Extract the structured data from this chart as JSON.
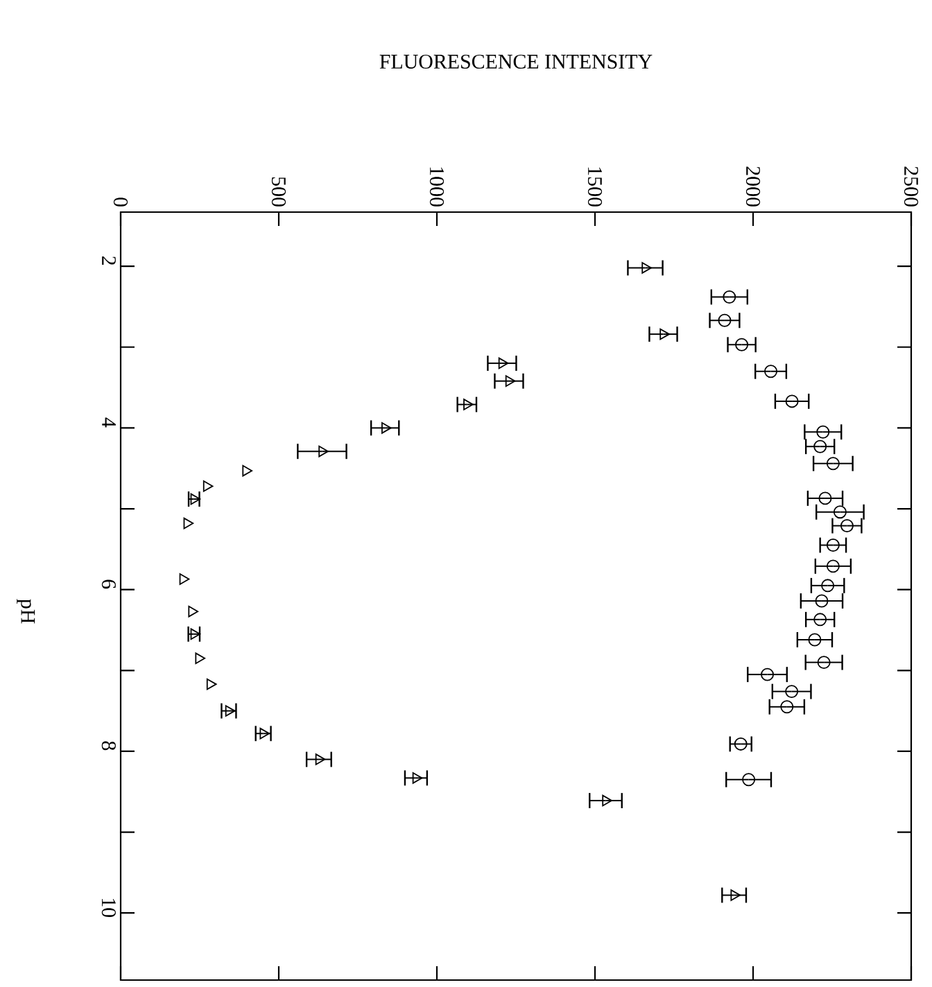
{
  "chart_data": {
    "type": "scatter",
    "xlabel": "FLUORESCENCE INTENSITY",
    "ylabel": "pH",
    "xlim": [
      0,
      2500
    ],
    "xticks": [
      0,
      500,
      1000,
      1500,
      2000,
      2500
    ],
    "ylim": [
      10.83,
      1.33
    ],
    "yticks": [
      2,
      {
        "value": 3,
        "label": null
      },
      4,
      {
        "value": 5,
        "label": null
      },
      6,
      {
        "value": 7,
        "label": null
      },
      8,
      {
        "value": 9,
        "label": null
      },
      10
    ],
    "series": [
      {
        "color": "#000000",
        "marker": "circle",
        "x": [
          1925,
          1910,
          1964,
          2056,
          2123,
          2221,
          2212,
          2253,
          2228,
          2275,
          2297,
          2253,
          2253,
          2236,
          2217,
          2212,
          2195,
          2224,
          2045,
          2122,
          2107,
          1961,
          1986
        ],
        "values": [
          2.38,
          2.67,
          2.97,
          3.3,
          3.67,
          4.05,
          4.23,
          4.44,
          4.87,
          5.04,
          5.21,
          5.45,
          5.71,
          5.95,
          6.14,
          6.37,
          6.62,
          6.9,
          7.05,
          7.26,
          7.45,
          7.91,
          8.35
        ],
        "xerrors": [
          57,
          47,
          44,
          49,
          53,
          58,
          45,
          62,
          55,
          75,
          46,
          41,
          56,
          52,
          66,
          45,
          55,
          58,
          62,
          61,
          55,
          34,
          71
        ]
      },
      {
        "color": "#000000",
        "marker": "triangle",
        "x": [
          1659,
          1716,
          1206,
          1228,
          1095,
          836,
          637,
          396,
          272,
          232,
          210,
          197,
          225,
          232,
          247,
          283,
          342,
          451,
          627,
          934,
          1534,
          1940
        ],
        "values": [
          2.02,
          2.84,
          3.2,
          3.42,
          3.71,
          4.0,
          4.29,
          4.53,
          4.72,
          4.88,
          5.18,
          5.87,
          6.27,
          6.55,
          6.85,
          7.17,
          7.5,
          7.78,
          8.1,
          8.33,
          8.61,
          9.78
        ],
        "xerrors": [
          55,
          44,
          45,
          45,
          30,
          44,
          77,
          null,
          null,
          17,
          null,
          null,
          null,
          18,
          null,
          null,
          23,
          24,
          39,
          35,
          51,
          38
        ]
      }
    ]
  }
}
